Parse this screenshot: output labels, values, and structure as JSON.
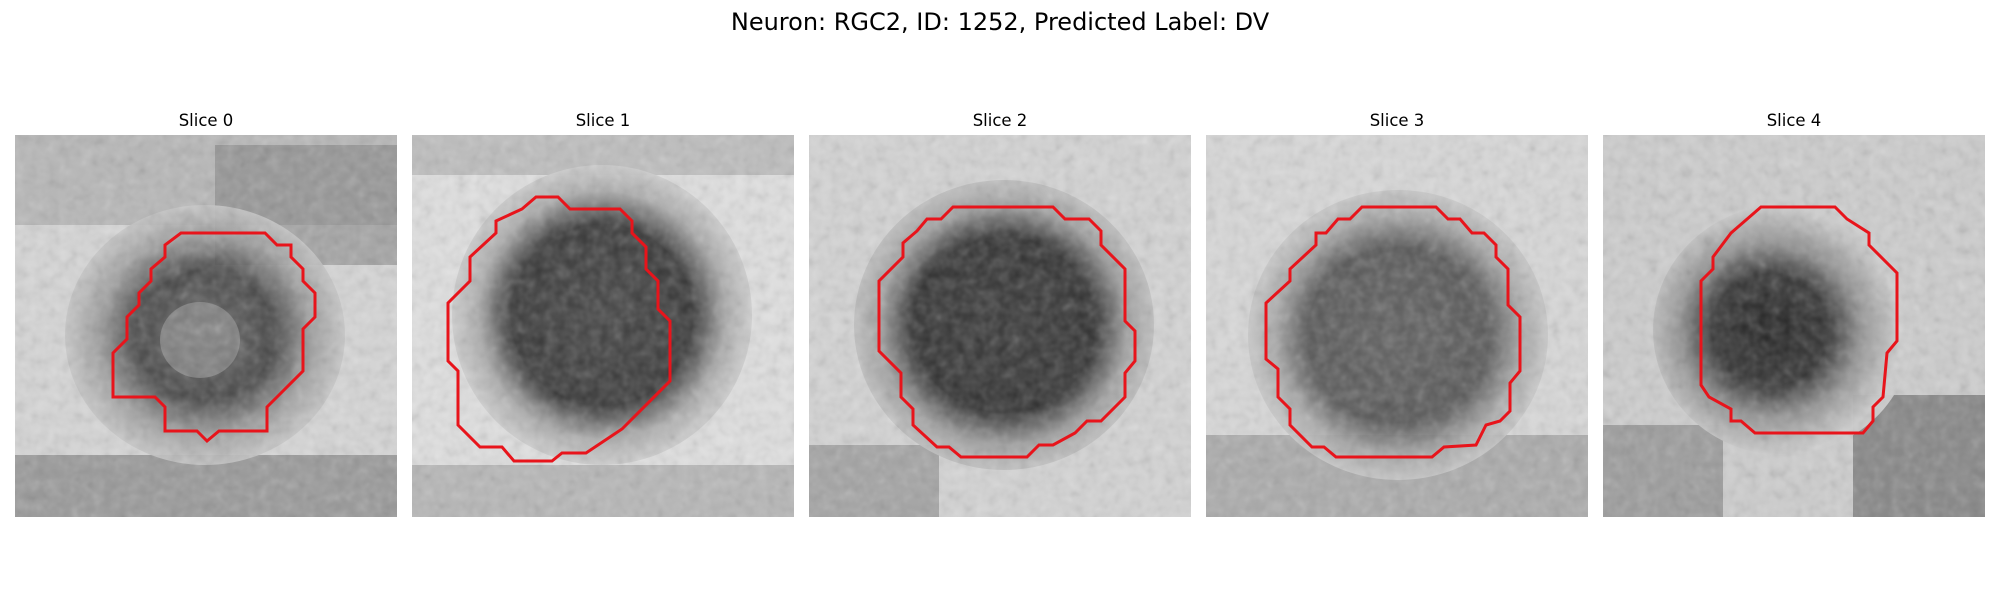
{
  "figure": {
    "title": "Neuron: RGC2, ID: 1252, Predicted Label: DV",
    "outline_color": "#e8141b",
    "panels": [
      {
        "title": "Slice 0"
      },
      {
        "title": "Slice 1"
      },
      {
        "title": "Slice 2"
      },
      {
        "title": "Slice 3"
      },
      {
        "title": "Slice 4"
      }
    ]
  }
}
